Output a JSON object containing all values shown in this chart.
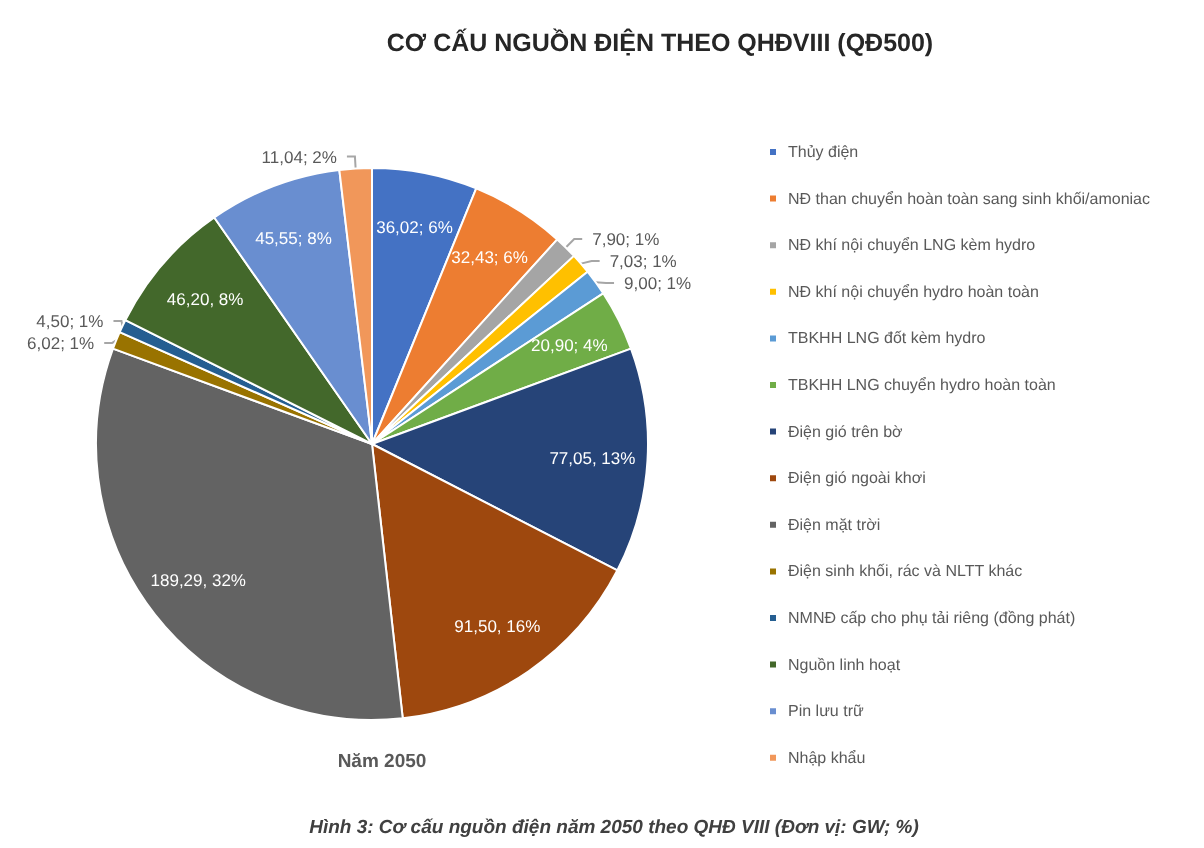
{
  "chart_data": {
    "type": "pie",
    "title": "CƠ CẤU NGUỒN ĐIỆN THEO QHĐVIII (QĐ500)",
    "categories": [
      "Thủy điện",
      "NĐ than chuyển hoàn toàn sang sinh khối/amoniac",
      "NĐ khí nội chuyển LNG kèm hydro",
      "NĐ khí nội chuyển hydro hoàn toàn",
      "TBKHH LNG đốt kèm hydro",
      "TBKHH LNG chuyển hydro hoàn toàn",
      "Điện gió trên bờ",
      "Điện gió ngoài khơi",
      "Điện mặt trời",
      "Điện sinh khối, rác và NLTT khác",
      "NMNĐ cấp cho phụ tải riêng (đồng phát)",
      "Nguồn linh hoạt",
      "Pin lưu trữ",
      "Nhập khẩu"
    ],
    "values": [
      36.02,
      32.43,
      7.9,
      7.03,
      9.0,
      20.9,
      77.05,
      91.5,
      189.29,
      6.02,
      4.5,
      46.2,
      45.55,
      11.04
    ],
    "colors": [
      "#4472c4",
      "#ed7d31",
      "#a5a5a5",
      "#ffc000",
      "#5b9bd5",
      "#70ad47",
      "#264478",
      "#9e480e",
      "#636363",
      "#997300",
      "#255e91",
      "#43682b",
      "#698ed0",
      "#f1975a"
    ],
    "value_labels": [
      "36,02; 6%",
      "32,43; 6%",
      "7,90; 1%",
      "7,03; 1%",
      "9,00; 1%",
      "20,90; 4%",
      "77,05, 13%",
      "91,50, 16%",
      "189,29, 32%",
      "6,02; 1%",
      "4,50; 1%",
      "46,20, 8%",
      "45,55; 8%",
      "11,04; 2%"
    ],
    "legend": "right",
    "annotations": [
      "Năm 2050",
      "Hình 3: Cơ cấu nguồn điện năm 2050 theo QHĐ VIII (Đơn vị: GW; %)"
    ]
  }
}
